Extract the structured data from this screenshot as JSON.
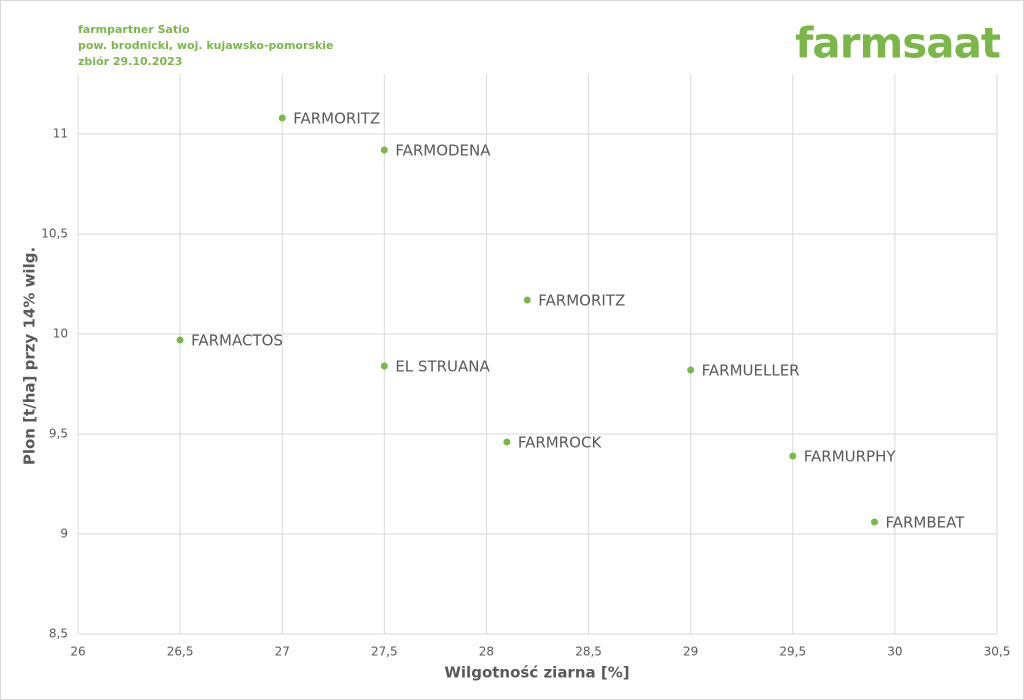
{
  "chart_data": {
    "type": "scatter",
    "title": "farmpartner Satio",
    "subtitle": "pow. brodnicki, woj. kujawsko-pomorskie",
    "annotation": "zbiór 29.10.2023",
    "logo": "farmsaat",
    "x_label": "Wilgotność ziarna [%]",
    "y_label": "Plon [t/ha] przy 14% wilg.",
    "color": "#7ab648",
    "grid": true,
    "x": [
      27,
      27.5,
      28.2,
      26.5,
      27.5,
      29,
      28.1,
      29.5,
      29.9
    ],
    "values": [
      11.08,
      10.92,
      10.17,
      9.97,
      9.84,
      9.82,
      9.46,
      9.39,
      9.06
    ],
    "labels": [
      "FARMORITZ",
      "FARMODENA",
      "FARMORITZ",
      "FARMACTOS",
      "EL STRUANA",
      "FARMUELLER",
      "FARMROCK",
      "FARMURPHY",
      "FARMBEAT"
    ],
    "xlim": [
      26,
      30.5
    ],
    "ylim": [
      8.5,
      11.3
    ],
    "xticks": [
      26,
      {
        "value": 26.5,
        "label": "26,5"
      },
      27,
      {
        "value": 27.5,
        "label": "27,5"
      },
      28,
      {
        "value": 28.5,
        "label": "28,5"
      },
      29,
      {
        "value": 29.5,
        "label": "29,5"
      },
      30,
      {
        "value": 30.5,
        "label": "30,5"
      }
    ],
    "yticks": [
      {
        "value": 8.5,
        "label": "8,5"
      },
      9,
      {
        "value": 9.5,
        "label": "9,5"
      },
      10,
      {
        "value": 10.5,
        "label": "10,5"
      },
      11
    ]
  }
}
